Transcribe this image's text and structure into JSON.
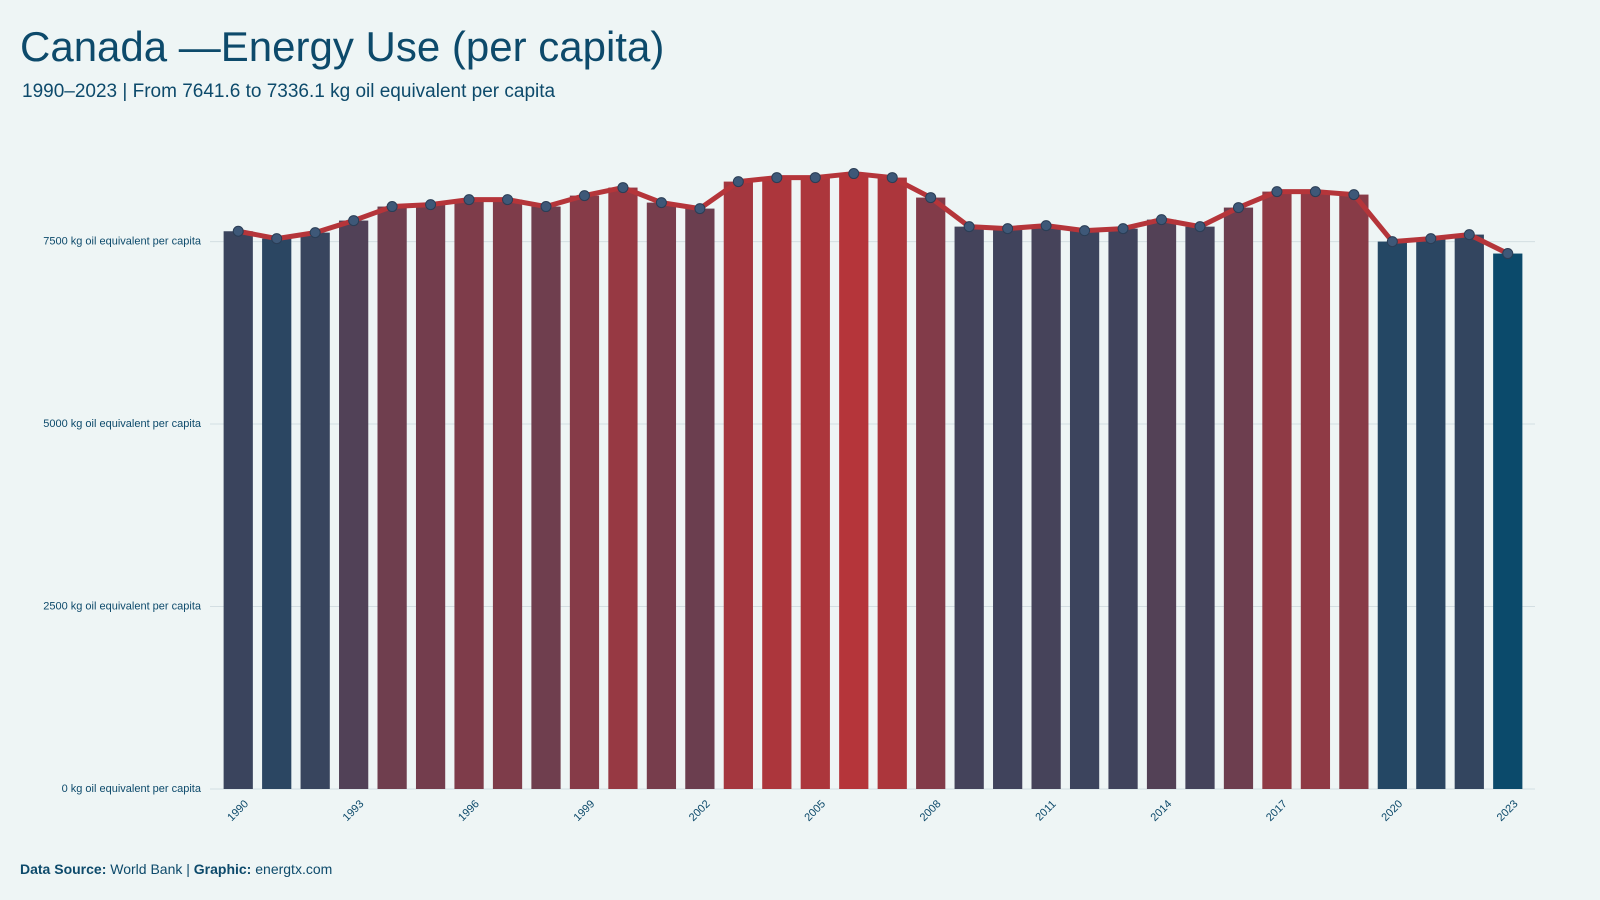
{
  "chart_data": {
    "type": "bar_line",
    "title": "Canada —Energy Use (per capita)",
    "subtitle": "1990–2023 | From 7641.6 to 7336.1 kg oil equivalent per capita",
    "categories": [
      1990,
      null,
      null,
      1993,
      null,
      null,
      1996,
      null,
      null,
      1999,
      null,
      null,
      2002,
      null,
      null,
      2005,
      null,
      null,
      2008,
      null,
      null,
      2011,
      null,
      null,
      2014,
      null,
      null,
      2017,
      null,
      null,
      2020,
      null,
      null,
      2023
    ],
    "values": [
      7641.6,
      7541,
      7623,
      7788,
      7980,
      8007,
      8075,
      8075,
      7980,
      8130,
      8240,
      8034,
      7952,
      8322,
      8377,
      8377,
      8432,
      8377,
      8103,
      7705,
      7678,
      7719,
      7650,
      7678,
      7801,
      7705,
      7966,
      8185,
      8185,
      8144,
      7500,
      7541,
      7596,
      7336.1
    ],
    "color_low": "#0b4a6b",
    "color_high": "#b5353a",
    "line_color": "#b5353a",
    "point_color": "#3e5878",
    "ylim": [
      0,
      8700
    ],
    "yticks": [
      {
        "value": 0,
        "label": "0 kg oil equivalent per capita"
      },
      {
        "value": 2500,
        "label": "2500 kg oil equivalent per capita"
      },
      {
        "value": 5000,
        "label": "5000 kg oil equivalent per capita"
      },
      {
        "value": 7500,
        "label": "7500 kg oil equivalent per capita"
      }
    ],
    "grid": true,
    "source_label": "Data Source:",
    "source": "World Bank",
    "separator": "|",
    "graphic_label": "Graphic:",
    "graphic": "energtx.com"
  }
}
